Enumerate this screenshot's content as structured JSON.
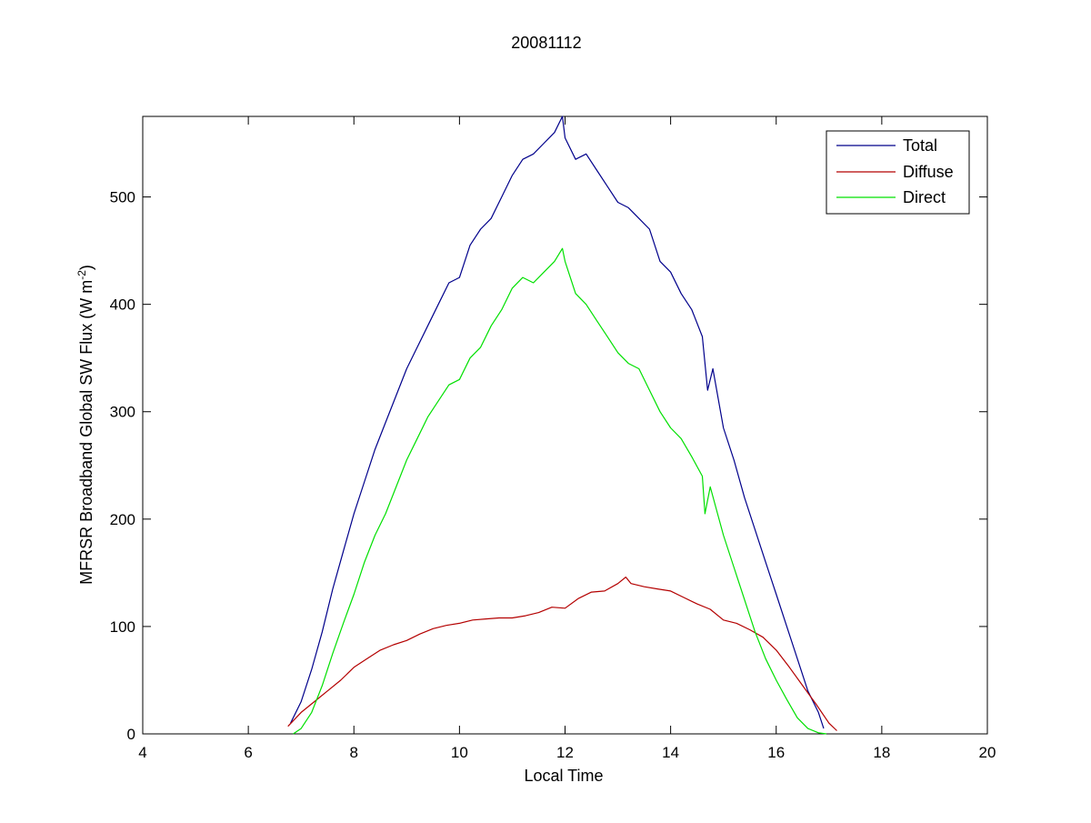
{
  "chart_data": {
    "type": "line",
    "title": "20081112",
    "xlabel": "Local Time",
    "ylabel_main": "MFRSR Broadband Global SW Flux (W m",
    "ylabel_sup": "-2",
    "ylabel_end": ")",
    "xlim": [
      4,
      20
    ],
    "ylim": [
      0,
      575
    ],
    "xticks": [
      4,
      6,
      8,
      10,
      12,
      14,
      16,
      18,
      20
    ],
    "yticks": [
      0,
      100,
      200,
      300,
      400,
      500
    ],
    "grid": false,
    "legend_position": "top-right",
    "series": [
      {
        "name": "Total",
        "color": "#00008b",
        "x": [
          6.8,
          7.0,
          7.2,
          7.4,
          7.6,
          7.8,
          8.0,
          8.2,
          8.4,
          8.6,
          8.8,
          9.0,
          9.2,
          9.4,
          9.6,
          9.8,
          10.0,
          10.2,
          10.4,
          10.6,
          10.8,
          11.0,
          11.2,
          11.4,
          11.6,
          11.8,
          11.95,
          12.0,
          12.2,
          12.4,
          12.6,
          12.8,
          13.0,
          13.2,
          13.4,
          13.6,
          13.8,
          14.0,
          14.2,
          14.4,
          14.6,
          14.7,
          14.8,
          15.0,
          15.2,
          15.4,
          15.6,
          15.8,
          16.0,
          16.2,
          16.4,
          16.6,
          16.8,
          16.9
        ],
        "y": [
          10,
          30,
          60,
          95,
          135,
          170,
          205,
          235,
          265,
          290,
          315,
          340,
          360,
          380,
          400,
          420,
          425,
          455,
          470,
          480,
          500,
          520,
          535,
          540,
          550,
          560,
          575,
          555,
          535,
          540,
          525,
          510,
          495,
          490,
          480,
          470,
          440,
          430,
          410,
          395,
          370,
          320,
          340,
          285,
          255,
          220,
          190,
          160,
          130,
          100,
          70,
          40,
          20,
          5
        ]
      },
      {
        "name": "Diffuse",
        "color": "#b40000",
        "x": [
          6.75,
          7.0,
          7.25,
          7.5,
          7.75,
          8.0,
          8.25,
          8.5,
          8.75,
          9.0,
          9.25,
          9.5,
          9.75,
          10.0,
          10.25,
          10.5,
          10.75,
          11.0,
          11.25,
          11.5,
          11.75,
          12.0,
          12.25,
          12.5,
          12.75,
          13.0,
          13.15,
          13.25,
          13.5,
          13.75,
          14.0,
          14.25,
          14.5,
          14.75,
          15.0,
          15.25,
          15.5,
          15.75,
          16.0,
          16.25,
          16.5,
          16.75,
          17.0,
          17.15
        ],
        "y": [
          7,
          20,
          30,
          40,
          50,
          62,
          70,
          78,
          83,
          87,
          93,
          98,
          101,
          103,
          106,
          107,
          108,
          108,
          110,
          113,
          118,
          117,
          126,
          132,
          133,
          140,
          146,
          140,
          137,
          135,
          133,
          127,
          121,
          116,
          106,
          103,
          97,
          90,
          78,
          62,
          45,
          28,
          10,
          3
        ]
      },
      {
        "name": "Direct",
        "color": "#00e000",
        "x": [
          6.85,
          7.0,
          7.2,
          7.4,
          7.6,
          7.8,
          8.0,
          8.2,
          8.4,
          8.6,
          8.8,
          9.0,
          9.2,
          9.4,
          9.6,
          9.8,
          10.0,
          10.2,
          10.4,
          10.6,
          10.8,
          11.0,
          11.2,
          11.4,
          11.6,
          11.8,
          11.95,
          12.0,
          12.2,
          12.4,
          12.6,
          12.8,
          13.0,
          13.2,
          13.4,
          13.6,
          13.8,
          14.0,
          14.2,
          14.4,
          14.6,
          14.65,
          14.75,
          15.0,
          15.2,
          15.4,
          15.6,
          15.8,
          16.0,
          16.2,
          16.4,
          16.6,
          16.8,
          16.95
        ],
        "y": [
          0,
          5,
          20,
          45,
          75,
          103,
          130,
          160,
          185,
          205,
          230,
          255,
          275,
          295,
          310,
          325,
          330,
          350,
          360,
          380,
          395,
          415,
          425,
          420,
          430,
          440,
          452,
          440,
          410,
          400,
          385,
          370,
          355,
          345,
          340,
          320,
          300,
          285,
          275,
          258,
          240,
          205,
          230,
          185,
          155,
          125,
          95,
          70,
          50,
          32,
          15,
          5,
          1,
          0
        ]
      }
    ]
  }
}
